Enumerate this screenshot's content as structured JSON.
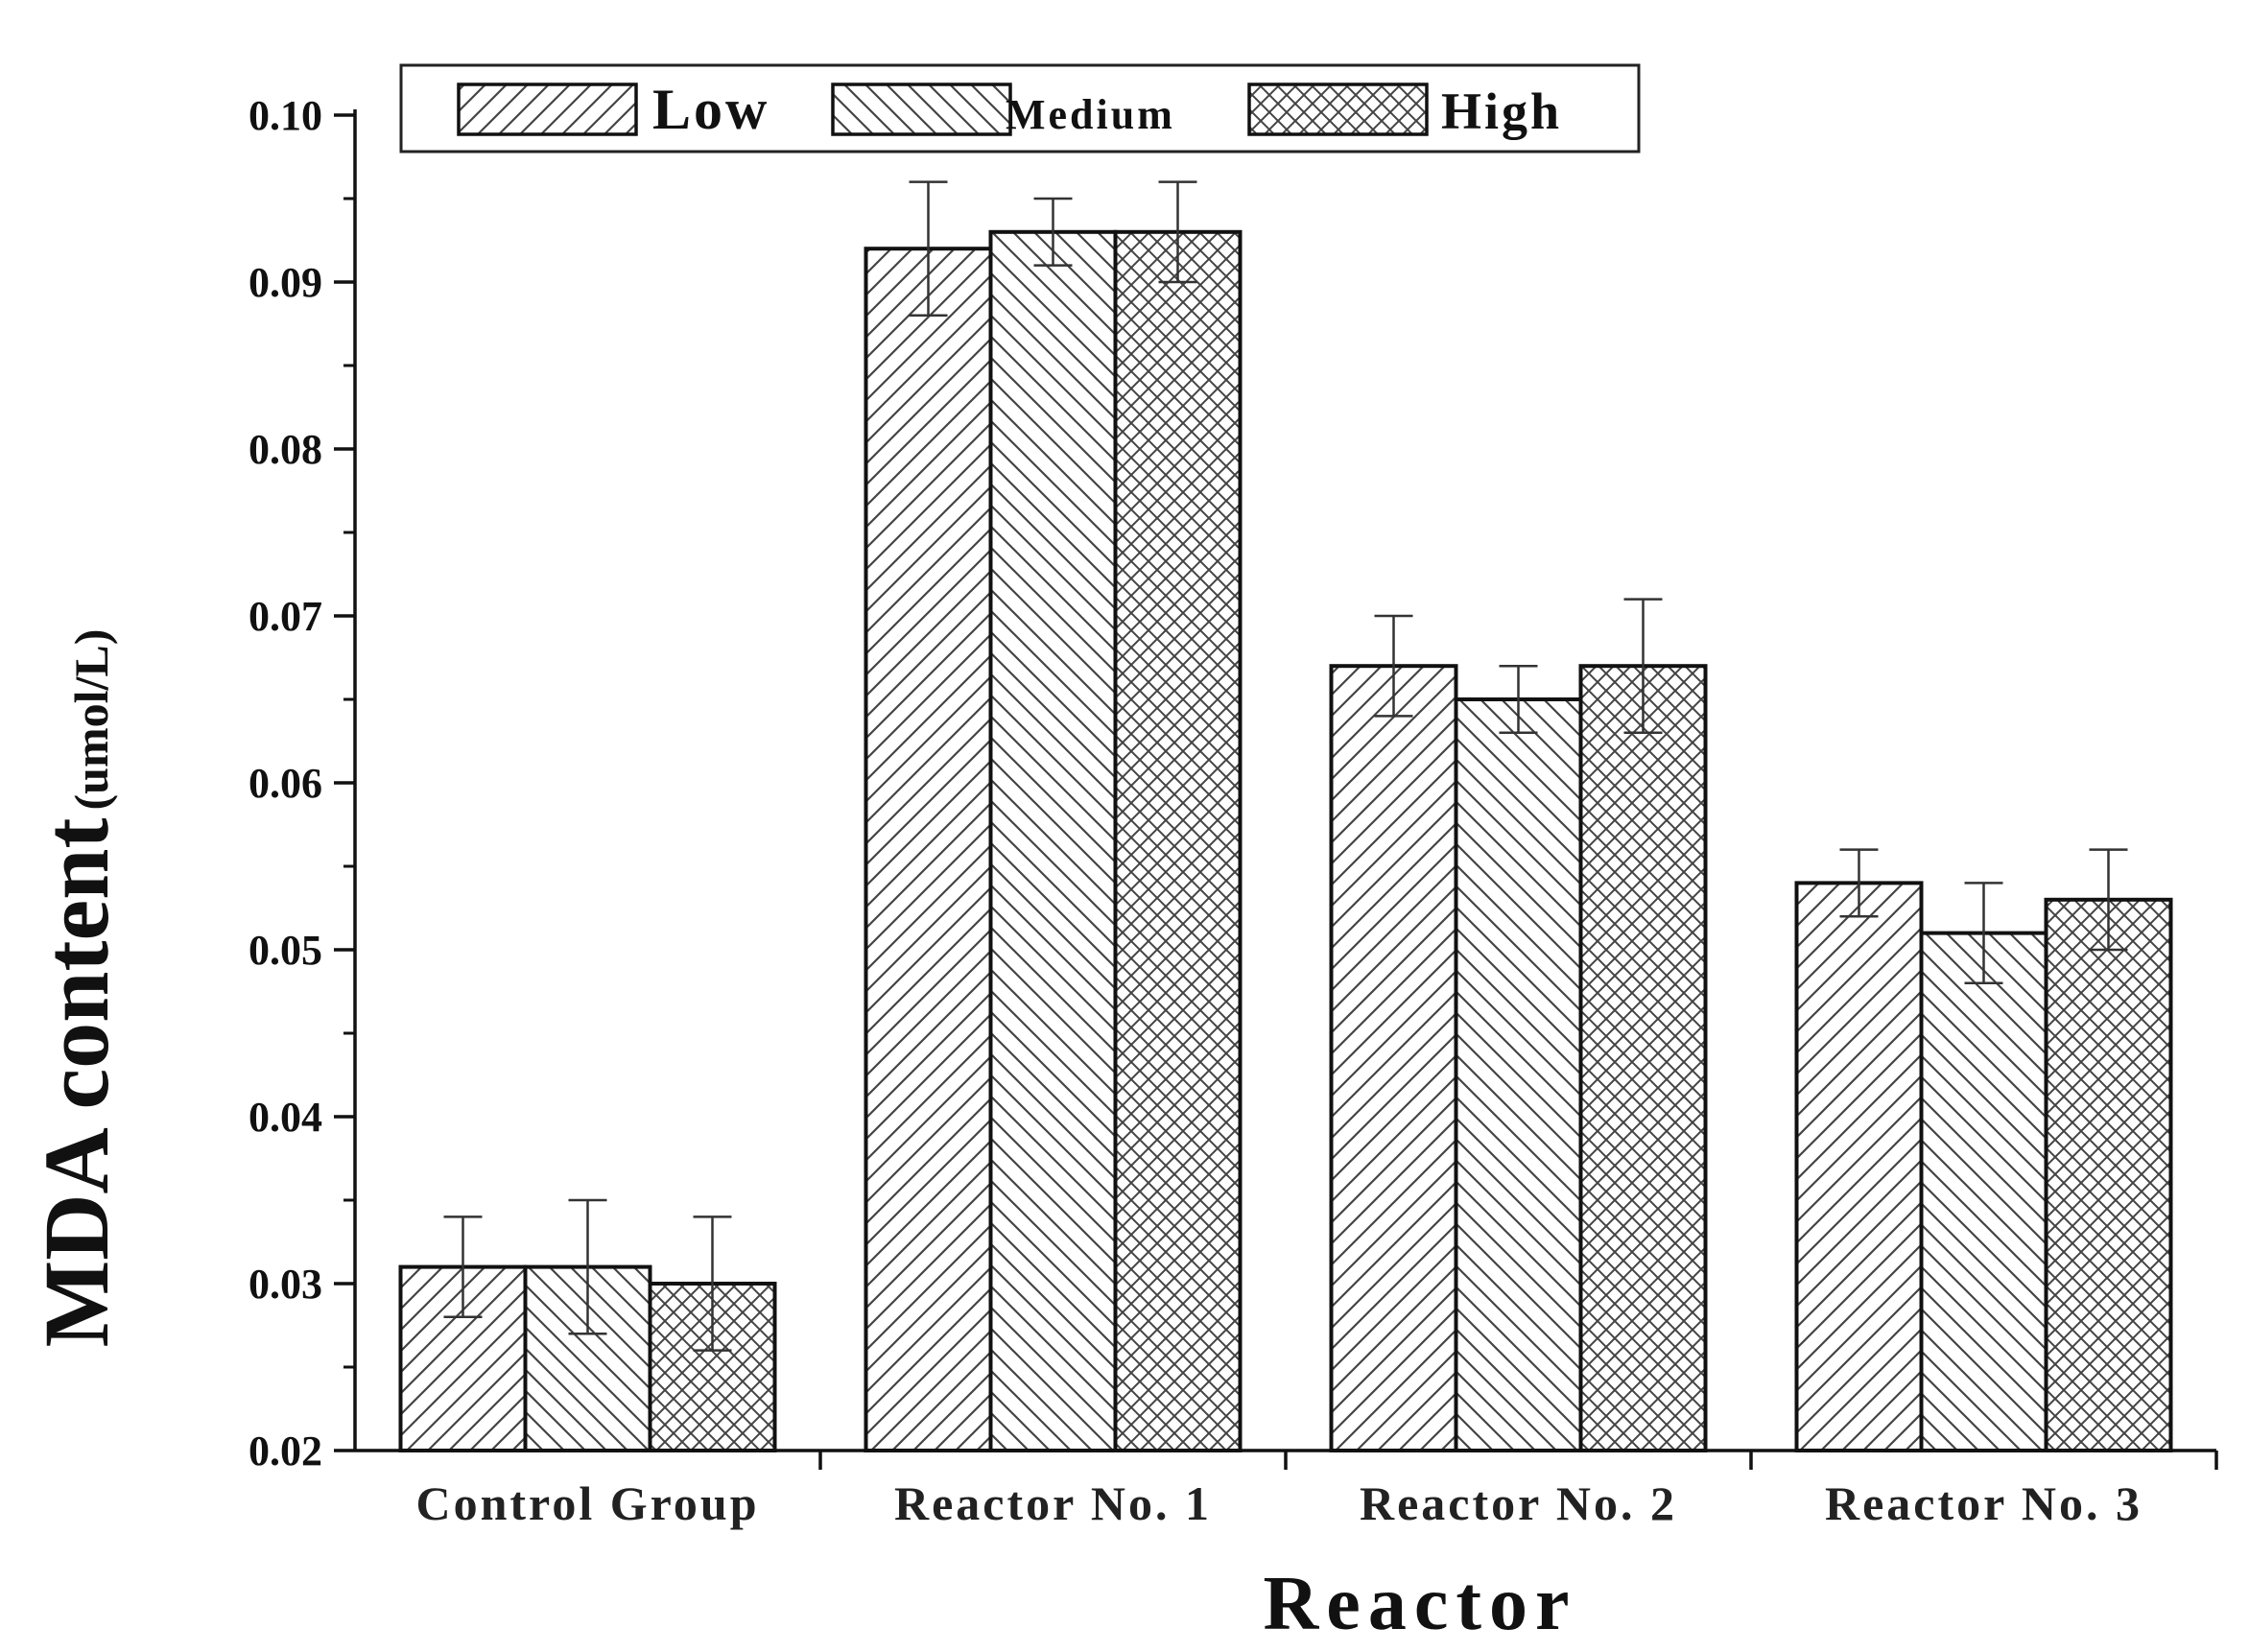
{
  "chart_data": {
    "type": "bar",
    "xlabel": "Reactor",
    "ylabel_main": "MDA content",
    "ylabel_unit": "(umol/L)",
    "categories": [
      "Control Group",
      "Reactor No. 1",
      "Reactor No. 2",
      "Reactor No. 3"
    ],
    "ylim": [
      0.02,
      0.1
    ],
    "yticks": [
      "0.02",
      "0.03",
      "0.04",
      "0.05",
      "0.06",
      "0.07",
      "0.08",
      "0.09",
      "0.10"
    ],
    "grid": false,
    "legend_position": "top",
    "series": [
      {
        "name": "Low",
        "pattern": "diagonal-forward",
        "values": [
          0.031,
          0.092,
          0.067,
          0.054
        ],
        "errors": [
          0.003,
          0.004,
          0.003,
          0.002
        ]
      },
      {
        "name": "Medium",
        "pattern": "diagonal-backward",
        "values": [
          0.031,
          0.093,
          0.065,
          0.051
        ],
        "errors": [
          0.004,
          0.002,
          0.002,
          0.003
        ]
      },
      {
        "name": "High",
        "pattern": "crosshatch",
        "values": [
          0.03,
          0.093,
          0.067,
          0.053
        ],
        "errors": [
          0.004,
          0.003,
          0.004,
          0.003
        ]
      }
    ],
    "colors": {
      "stroke": "#111111",
      "hatch": "#444444",
      "background": "#ffffff"
    }
  }
}
